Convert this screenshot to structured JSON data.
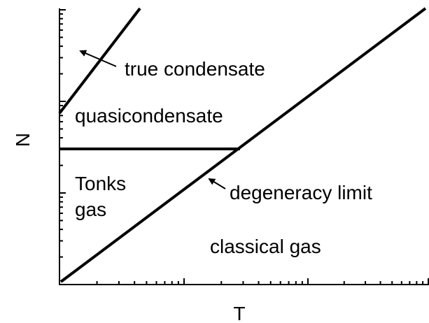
{
  "axes": {
    "x_label": "T",
    "y_label": "N"
  },
  "regions": {
    "true_condensate": "true condensate",
    "quasicondensate": "quasicondensate",
    "tonks_1": "Tonks",
    "tonks_2": "gas",
    "degeneracy": "degeneracy limit",
    "classical": "classical gas"
  }
}
